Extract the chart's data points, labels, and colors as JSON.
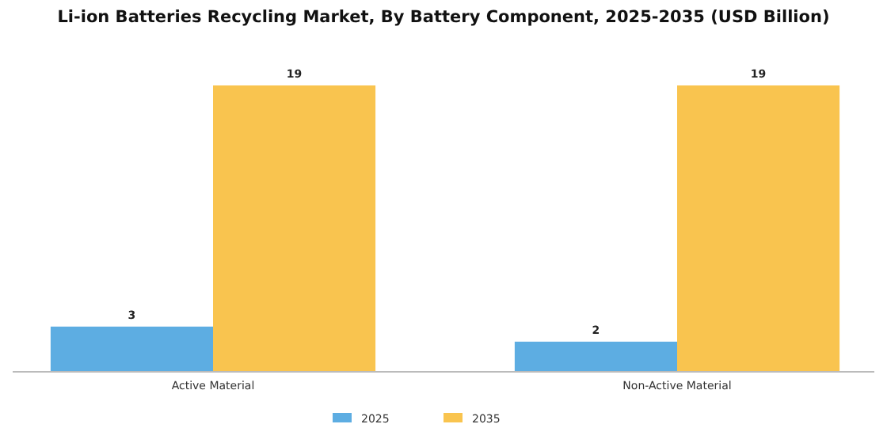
{
  "chart_data": {
    "type": "bar",
    "title": "Li-ion Batteries Recycling Market, By Battery Component, 2025-2035 (USD Billion)",
    "categories": [
      "Active Material",
      "Non-Active Material"
    ],
    "series": [
      {
        "name": "2025",
        "color": "#5dade2",
        "values": [
          3,
          2
        ]
      },
      {
        "name": "2035",
        "color": "#f9c44f",
        "values": [
          19,
          19
        ]
      }
    ],
    "data_labels": true,
    "legend": "bottom",
    "grid": false
  }
}
